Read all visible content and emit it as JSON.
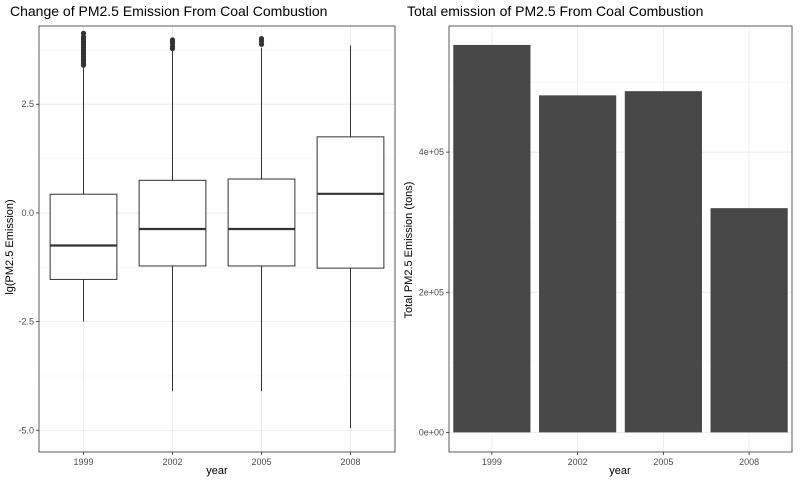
{
  "chart_data": [
    {
      "type": "box",
      "title": "Change of PM2.5 Emission From Coal Combustion",
      "xlabel": "year",
      "ylabel": "lg(PM2.5 Emission)",
      "categories": [
        "1999",
        "2002",
        "2005",
        "2008"
      ],
      "ylim": [
        -5.5,
        4.3
      ],
      "yticks": [
        -5.0,
        -2.5,
        0.0,
        2.5
      ],
      "ytick_labels": [
        "-5.0",
        "-2.5",
        "0.0",
        "2.5"
      ],
      "grid": true,
      "boxes": [
        {
          "category": "1999",
          "min": -2.5,
          "q1": -1.53,
          "median": -0.75,
          "q3": 0.43,
          "max": 3.35,
          "outliers": [
            3.4,
            3.45,
            3.5,
            3.55,
            3.6,
            3.65,
            3.7,
            3.75,
            3.8,
            3.85,
            3.9,
            3.95,
            4.0,
            4.05,
            4.13
          ]
        },
        {
          "category": "2002",
          "min": -4.1,
          "q1": -1.22,
          "median": -0.37,
          "q3": 0.75,
          "max": 3.73,
          "outliers": [
            3.78,
            3.83,
            3.9,
            3.95,
            3.98
          ]
        },
        {
          "category": "2005",
          "min": -4.1,
          "q1": -1.22,
          "median": -0.37,
          "q3": 0.78,
          "max": 3.8,
          "outliers": [
            3.88,
            3.95,
            4.01
          ]
        },
        {
          "category": "2008",
          "min": -4.95,
          "q1": -1.27,
          "median": 0.44,
          "q3": 1.75,
          "max": 3.85,
          "outliers": []
        }
      ]
    },
    {
      "type": "bar",
      "title": "Total emission of PM2.5 From Coal Combustion",
      "xlabel": "year",
      "ylabel": "Total PM2.5 Emission (tons)",
      "categories": [
        "1999",
        "2002",
        "2005",
        "2008"
      ],
      "values": [
        553000,
        481000,
        487000,
        320000
      ],
      "ylim": [
        -28000,
        580000
      ],
      "yticks": [
        0,
        200000,
        400000
      ],
      "ytick_labels": [
        "0e+00",
        "2e+05",
        "4e+05"
      ],
      "grid": true
    }
  ],
  "colors": {
    "panel_border": "#333333",
    "grid_major": "#ebebeb",
    "grid_minor": "#f5f5f5",
    "box_line": "#333333",
    "bar_fill": "#474747",
    "tick_mark": "#333333"
  }
}
